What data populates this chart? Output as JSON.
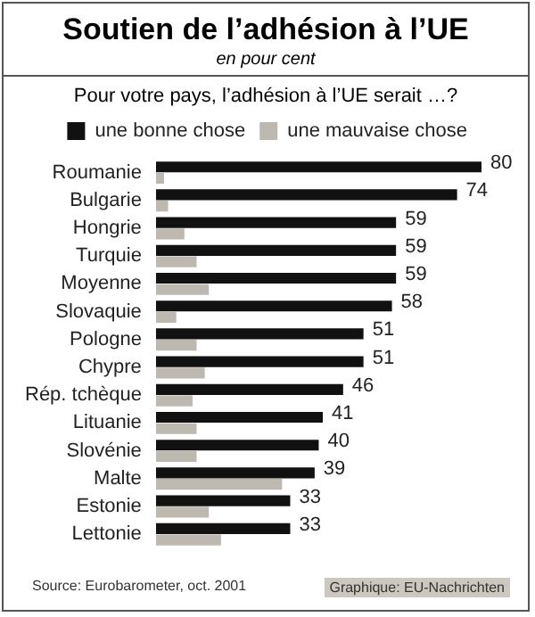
{
  "chart_data": {
    "type": "bar",
    "orientation": "horizontal",
    "title": "Soutien de l’adhésion à l’UE",
    "subtitle": "en pour cent",
    "annotations": [
      "Pour votre pays, l’adhésion à l’UE serait …?",
      "Source: Eurobarometer, oct. 2001",
      "Graphique: EU-Nachrichten"
    ],
    "categories": [
      "Roumanie",
      "Bulgarie",
      "Hongrie",
      "Turquie",
      "Moyenne",
      "Slovaquie",
      "Pologne",
      "Chypre",
      "Rép. tchèque",
      "Lituanie",
      "Slovénie",
      "Malte",
      "Estonie",
      "Lettonie"
    ],
    "series": [
      {
        "name": "une bonne chose",
        "color": "#111111",
        "values": [
          80,
          74,
          59,
          59,
          59,
          58,
          51,
          51,
          46,
          41,
          40,
          39,
          33,
          33
        ],
        "value_labels": [
          "80",
          "74",
          "59",
          "59",
          "59",
          "58",
          "51",
          "51",
          "46",
          "41",
          "40",
          "39",
          "33",
          "33"
        ]
      },
      {
        "name": "une mauvaise chose",
        "color": "#bdb8b0",
        "values": [
          2,
          3,
          7,
          10,
          13,
          5,
          10,
          12,
          9,
          10,
          10,
          31,
          13,
          16
        ]
      }
    ],
    "legend": "top",
    "tick_labels": "y"
  }
}
